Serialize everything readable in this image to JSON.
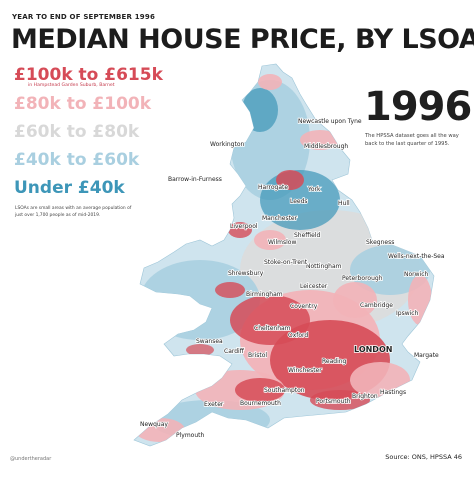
{
  "header": {
    "subtitle": "YEAR TO END OF SEPTEMBER 1996",
    "title": "MEDIAN HOUSE PRICE, BY LSOA"
  },
  "year": {
    "label": "1996",
    "note": "The HPSSA dataset goes all the way back to the last quarter of 1995."
  },
  "legend": {
    "items": [
      {
        "label": "£100k to £615k",
        "color": "#d64b57"
      },
      {
        "label": "£80k to £100k",
        "color": "#f2b3b8"
      },
      {
        "label": "£60k to £80k",
        "color": "#dcdcdc"
      },
      {
        "label": "£40k to £60k",
        "color": "#a9cfe0"
      },
      {
        "label": "Under £40k",
        "color": "#3d96b8"
      }
    ],
    "top_note": "in Hampstead Garden Suburb, Barnet"
  },
  "lsoa_note": "LSOAs are small areas with an average population of just over 1,700 people as of mid-2019.",
  "cities": [
    {
      "name": "Newcastle upon Tyne"
    },
    {
      "name": "Workington"
    },
    {
      "name": "Middlesbrough"
    },
    {
      "name": "Barrow-in-Furness"
    },
    {
      "name": "Harrogate"
    },
    {
      "name": "York"
    },
    {
      "name": "Hull"
    },
    {
      "name": "Leeds"
    },
    {
      "name": "Manchester"
    },
    {
      "name": "Liverpool"
    },
    {
      "name": "Sheffield"
    },
    {
      "name": "Wilmslow"
    },
    {
      "name": "Skegness"
    },
    {
      "name": "Nottingham"
    },
    {
      "name": "Wells-next-the-Sea"
    },
    {
      "name": "Stoke-on-Trent"
    },
    {
      "name": "Norwich"
    },
    {
      "name": "Shrewsbury"
    },
    {
      "name": "Leicester"
    },
    {
      "name": "Peterborough"
    },
    {
      "name": "Birmingham"
    },
    {
      "name": "Coventry"
    },
    {
      "name": "Cambridge"
    },
    {
      "name": "Ipswich"
    },
    {
      "name": "Cheltenham"
    },
    {
      "name": "Oxford"
    },
    {
      "name": "Swansea"
    },
    {
      "name": "Cardiff"
    },
    {
      "name": "Bristol"
    },
    {
      "name": "LONDON"
    },
    {
      "name": "Reading"
    },
    {
      "name": "Margate"
    },
    {
      "name": "Winchester"
    },
    {
      "name": "Southampton"
    },
    {
      "name": "Brighton"
    },
    {
      "name": "Hastings"
    },
    {
      "name": "Portsmouth"
    },
    {
      "name": "Exeter"
    },
    {
      "name": "Bournemouth"
    },
    {
      "name": "Newquay"
    },
    {
      "name": "Plymouth"
    }
  ],
  "footer": {
    "handle": "@undertheradar",
    "source": "Source: ONS, HPSSA 46"
  }
}
